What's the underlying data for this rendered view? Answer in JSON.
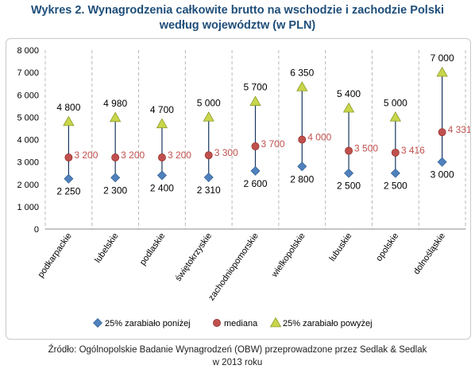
{
  "title": {
    "line1": "Wykres 2. Wynagrodzenia całkowite brutto na wschodzie i zachodzie Polski",
    "line2": "według województw (w PLN)"
  },
  "source": {
    "line1": "Źródło: Ogólnopolskie Badanie Wynagrodzeń (OBW) przeprowadzone przez Sedlak & Sedlak",
    "line2": "w 2013 roku"
  },
  "chart_data": {
    "type": "scatter",
    "categories": [
      "podkarpackie",
      "lubelskie",
      "podlaskie",
      "świętokrzyskie",
      "zachodniopomorskie",
      "wielkopolskie",
      "lubuskie",
      "opolskie",
      "dolnośląskie"
    ],
    "series": [
      {
        "name": "25% zarabiało poniżej",
        "marker": "diamond",
        "color": "#4f81bd",
        "label_color": "#000000",
        "values": [
          2250,
          2300,
          2400,
          2310,
          2600,
          2800,
          2500,
          2500,
          3000
        ],
        "labels": [
          "2 250",
          "2 300",
          "2 400",
          "2 310",
          "2 600",
          "2 800",
          "2 500",
          "2 500",
          "3 000"
        ]
      },
      {
        "name": "mediana",
        "marker": "circle",
        "color": "#c0504d",
        "label_color": "#c0504d",
        "values": [
          3200,
          3200,
          3200,
          3300,
          3700,
          4000,
          3500,
          3416,
          4331
        ],
        "labels": [
          "3 200",
          "3 200",
          "3 200",
          "3 300",
          "3 700",
          "4 000",
          "3 500",
          "3 416",
          "4 331"
        ]
      },
      {
        "name": "25% zarabiało powyżej",
        "marker": "triangle",
        "color": "#c8d64a",
        "label_color": "#000000",
        "values": [
          4800,
          4980,
          4700,
          5000,
          5700,
          6350,
          5400,
          5000,
          7000
        ],
        "labels": [
          "4 800",
          "4 980",
          "4 700",
          "5 000",
          "5 700",
          "6 350",
          "5 400",
          "5 000",
          "7 000"
        ]
      }
    ],
    "yticks": [
      "0",
      "1 000",
      "2 000",
      "3 000",
      "4 000",
      "5 000",
      "6 000",
      "7 000",
      "8 000"
    ],
    "ylim": [
      0,
      8000
    ],
    "grid": "vertical dashed",
    "legend": "bottom",
    "range_line_color": "#17375e"
  }
}
